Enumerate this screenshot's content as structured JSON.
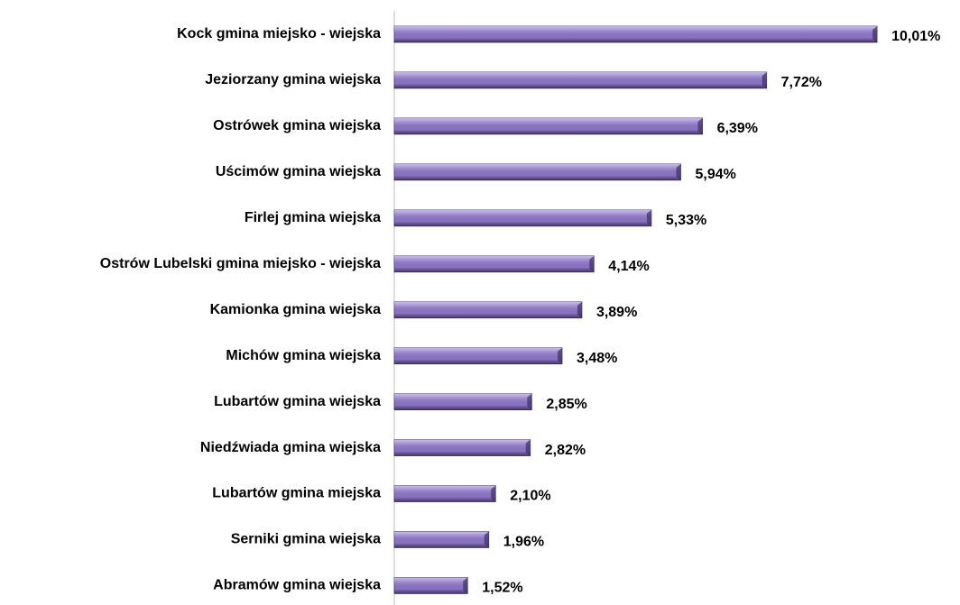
{
  "chart_data": {
    "type": "bar",
    "orientation": "horizontal",
    "categories": [
      "Kock gmina miejsko - wiejska",
      "Jeziorzany gmina wiejska",
      "Ostrówek gmina wiejska",
      "Uścimów gmina wiejska",
      "Firlej gmina wiejska",
      "Ostrów Lubelski gmina miejsko - wiejska",
      "Kamionka gmina wiejska",
      "Michów gmina wiejska",
      "Lubartów gmina wiejska",
      "Niedźwiada gmina wiejska",
      "Lubartów gmina miejska",
      "Serniki gmina wiejska",
      "Abramów gmina wiejska"
    ],
    "values": [
      10.01,
      7.72,
      6.39,
      5.94,
      5.33,
      4.14,
      3.89,
      3.48,
      2.85,
      2.82,
      2.1,
      1.96,
      1.52
    ],
    "value_labels": [
      "10,01%",
      "7,72%",
      "6,39%",
      "5,94%",
      "5,33%",
      "4,14%",
      "3,89%",
      "3,48%",
      "2,85%",
      "2,82%",
      "2,10%",
      "1,96%",
      "1,52%"
    ],
    "color": "#8b74c4",
    "xlim": [
      0,
      11
    ]
  }
}
